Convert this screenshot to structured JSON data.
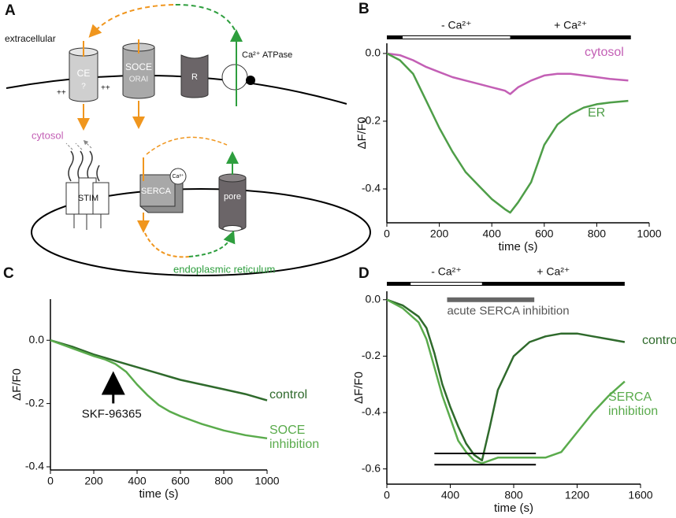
{
  "diagram": {
    "panel": "A",
    "labels": {
      "extracellular": "extracellular",
      "ce": "CE",
      "ce_unknown": "?",
      "charge_left": "++",
      "charge_right": "++",
      "soce": "SOCE",
      "orai": "ORAI",
      "receptor": "R",
      "atpase": "Ca²⁺ ATPase",
      "cytosol": "cytosol",
      "stim": "STIM",
      "serca": "SERCA",
      "serca_ca": "Ca²⁺",
      "pore": "pore",
      "er": "endoplasmic reticulum"
    }
  },
  "chart_data": [
    {
      "panel": "B",
      "type": "line",
      "xlabel": "time (s)",
      "ylabel": "ΔF/F0",
      "x": [
        0,
        50,
        100,
        150,
        200,
        250,
        300,
        350,
        400,
        450,
        470,
        500,
        550,
        600,
        650,
        700,
        750,
        800,
        850,
        920
      ],
      "series": [
        {
          "name": "cytosol",
          "color": "#c35fb5",
          "values": [
            0,
            -0.005,
            -0.02,
            -0.04,
            -0.055,
            -0.07,
            -0.08,
            -0.09,
            -0.1,
            -0.11,
            -0.12,
            -0.1,
            -0.08,
            -0.065,
            -0.06,
            -0.06,
            -0.065,
            -0.07,
            -0.075,
            -0.08
          ]
        },
        {
          "name": "ER",
          "color": "#4e9e48",
          "values": [
            0,
            -0.02,
            -0.06,
            -0.14,
            -0.22,
            -0.29,
            -0.35,
            -0.39,
            -0.43,
            -0.46,
            -0.47,
            -0.44,
            -0.38,
            -0.27,
            -0.21,
            -0.18,
            -0.16,
            -0.15,
            -0.145,
            -0.14
          ]
        }
      ],
      "xlim": [
        0,
        1000
      ],
      "xticks": [
        0,
        200,
        400,
        600,
        800,
        1000
      ],
      "ylim": [
        -0.5,
        0.03
      ],
      "yticks": [
        {
          "value": 0,
          "label": "0.0"
        },
        -0.2,
        -0.4
      ],
      "condition_bar": {
        "start": 0,
        "end": 930,
        "gap": [
          60,
          470
        ],
        "gap_label": "- Ca²⁺",
        "rest_label": "+ Ca²⁺"
      }
    },
    {
      "panel": "C",
      "type": "line",
      "xlabel": "time (s)",
      "ylabel": "ΔF/F0",
      "x": [
        0,
        100,
        200,
        250,
        300,
        350,
        400,
        450,
        500,
        550,
        600,
        700,
        800,
        900,
        1000
      ],
      "series": [
        {
          "name": "control",
          "color": "#2f6a2c",
          "values": [
            0,
            -0.02,
            -0.045,
            -0.055,
            -0.065,
            -0.075,
            -0.085,
            -0.095,
            -0.105,
            -0.115,
            -0.125,
            -0.14,
            -0.155,
            -0.17,
            -0.19
          ]
        },
        {
          "name": "SOCE inhibition",
          "color": "#5aab4c",
          "values": [
            0,
            -0.025,
            -0.05,
            -0.06,
            -0.075,
            -0.1,
            -0.14,
            -0.175,
            -0.205,
            -0.225,
            -0.24,
            -0.265,
            -0.285,
            -0.3,
            -0.31
          ]
        }
      ],
      "xlim": [
        0,
        1000
      ],
      "xticks": [
        0,
        200,
        400,
        600,
        800,
        1000
      ],
      "ylim": [
        -0.41,
        0.13
      ],
      "yticks": [
        {
          "value": 0,
          "label": "0.0"
        },
        -0.2,
        -0.4
      ],
      "arrow": {
        "label": "SKF-96365",
        "x": 290,
        "y": -0.12
      }
    },
    {
      "panel": "D",
      "type": "line",
      "xlabel": "time (s)",
      "ylabel": "ΔF/F0",
      "x": [
        0,
        100,
        200,
        250,
        300,
        350,
        400,
        450,
        500,
        550,
        600,
        650,
        700,
        800,
        900,
        1000,
        1100,
        1200,
        1300,
        1400,
        1500
      ],
      "series": [
        {
          "name": "control",
          "color": "#2f6a2c",
          "values": [
            0,
            -0.02,
            -0.06,
            -0.1,
            -0.19,
            -0.3,
            -0.38,
            -0.45,
            -0.51,
            -0.55,
            -0.57,
            -0.45,
            -0.32,
            -0.2,
            -0.15,
            -0.13,
            -0.12,
            -0.12,
            -0.13,
            -0.14,
            -0.15
          ]
        },
        {
          "name": "SERCA inhibition",
          "color": "#5aab4c",
          "values": [
            0,
            -0.03,
            -0.08,
            -0.14,
            -0.24,
            -0.34,
            -0.42,
            -0.5,
            -0.54,
            -0.57,
            -0.58,
            -0.57,
            -0.56,
            -0.56,
            -0.56,
            -0.56,
            -0.54,
            -0.47,
            -0.4,
            -0.34,
            -0.29
          ]
        }
      ],
      "xlim": [
        0,
        1600
      ],
      "xticks": [
        0,
        400,
        800,
        1200,
        1600
      ],
      "ylim": [
        -0.654,
        0.03
      ],
      "yticks": [
        {
          "value": 0,
          "label": "0.0"
        },
        -0.2,
        -0.4,
        -0.6
      ],
      "condition_bar": {
        "start": 0,
        "end": 1500,
        "gap": [
          150,
          600
        ],
        "gap_label": "- Ca²⁺",
        "rest_label": "+ Ca²⁺"
      },
      "treatment_bar": {
        "label": "acute SERCA inhibition",
        "start": 380,
        "end": 930
      },
      "levels": [
        {
          "y": -0.545,
          "x": [
            300,
            940
          ]
        },
        {
          "y": -0.585,
          "x": [
            300,
            940
          ]
        }
      ]
    }
  ]
}
